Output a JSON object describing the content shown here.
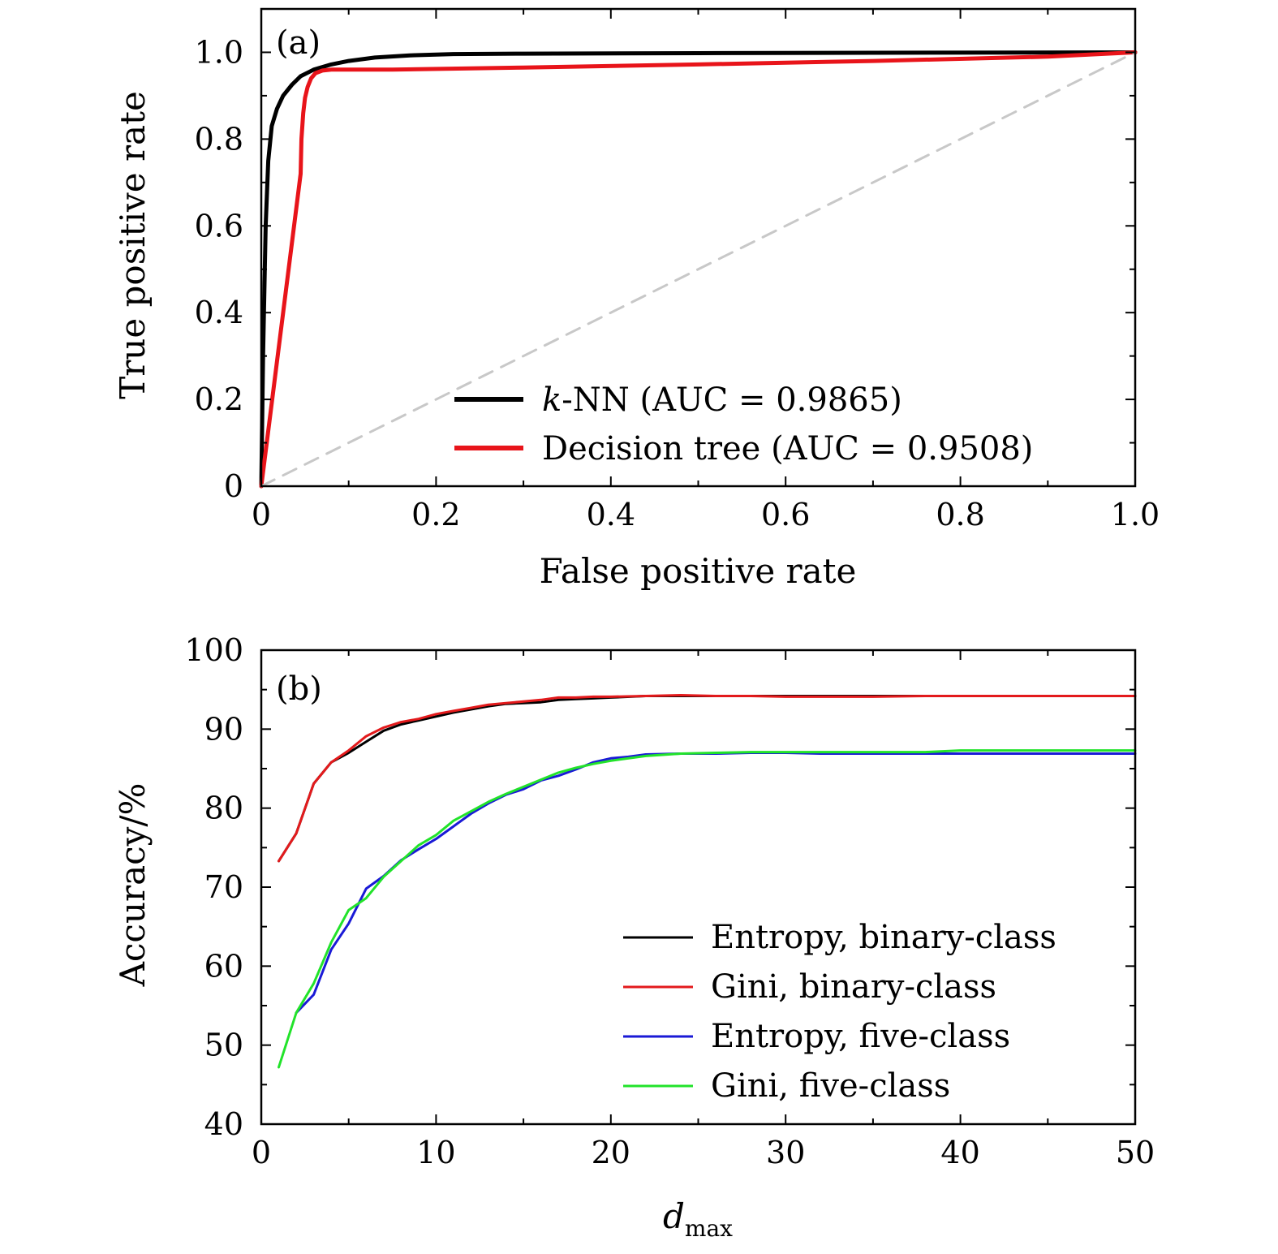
{
  "chart_data": [
    {
      "panel": "(a)",
      "type": "line",
      "xlabel": "False positive rate",
      "ylabel": "True positive rate",
      "xlim": [
        0,
        1
      ],
      "ylim": [
        0,
        1.1
      ],
      "xticks": [
        0,
        0.2,
        0.4,
        0.6,
        0.8,
        1.0
      ],
      "xtick_labels": [
        "0",
        "0.2",
        "0.4",
        "0.6",
        "0.8",
        "1.0"
      ],
      "yticks": [
        0,
        0.2,
        0.4,
        0.6,
        0.8,
        1.0
      ],
      "ytick_labels": [
        "0",
        "0.2",
        "0.4",
        "0.6",
        "0.8",
        "1.0"
      ],
      "legend_position": "bottom-right",
      "series": [
        {
          "name": "k-NN (AUC = 0.9865)",
          "name_italic": "k",
          "name_rest": "-NN (AUC = 0.9865)",
          "color": "#000000",
          "x": [
            0,
            0.002,
            0.005,
            0.008,
            0.012,
            0.018,
            0.025,
            0.035,
            0.045,
            0.06,
            0.08,
            0.1,
            0.13,
            0.17,
            0.22,
            0.3,
            0.5,
            0.7,
            1.0
          ],
          "y": [
            0,
            0.3,
            0.6,
            0.75,
            0.83,
            0.87,
            0.9,
            0.925,
            0.945,
            0.96,
            0.972,
            0.98,
            0.988,
            0.993,
            0.996,
            0.997,
            0.998,
            0.999,
            1.0
          ]
        },
        {
          "name": "Decision tree (AUC = 0.9508)",
          "color": "#e8141a",
          "x": [
            0,
            0.045,
            0.046,
            0.048,
            0.05,
            0.053,
            0.057,
            0.062,
            0.07,
            0.08,
            0.1,
            0.15,
            0.3,
            0.5,
            0.7,
            0.9,
            1.0
          ],
          "y": [
            0,
            0.72,
            0.8,
            0.86,
            0.895,
            0.92,
            0.94,
            0.952,
            0.958,
            0.96,
            0.96,
            0.96,
            0.965,
            0.972,
            0.98,
            0.99,
            1.0
          ]
        },
        {
          "name": "chance",
          "color": "#c8c8c8",
          "dashed": true,
          "x": [
            0,
            1
          ],
          "y": [
            0,
            1
          ]
        }
      ]
    },
    {
      "panel": "(b)",
      "type": "line",
      "xlabel": "d",
      "xlabel_sub": "max",
      "ylabel": "Accuracy/%",
      "xlim": [
        0,
        50
      ],
      "ylim": [
        40,
        100
      ],
      "xticks": [
        0,
        10,
        20,
        30,
        40,
        50
      ],
      "xtick_labels": [
        "0",
        "10",
        "20",
        "30",
        "40",
        "50"
      ],
      "yticks": [
        40,
        50,
        60,
        70,
        80,
        90,
        100
      ],
      "ytick_labels": [
        "40",
        "50",
        "60",
        "70",
        "80",
        "90",
        "100"
      ],
      "legend_position": "bottom-right",
      "series": [
        {
          "name": "Entropy, binary-class",
          "color": "#000000",
          "x": [
            1,
            2,
            3,
            4,
            5,
            6,
            7,
            8,
            9,
            10,
            11,
            12,
            13,
            14,
            15,
            16,
            17,
            18,
            19,
            20,
            22,
            24,
            26,
            28,
            30,
            32,
            35,
            38,
            40,
            45,
            50
          ],
          "y": [
            73.3,
            76.8,
            83.1,
            85.8,
            87.0,
            88.4,
            89.8,
            90.6,
            91.1,
            91.6,
            92.1,
            92.5,
            92.9,
            93.2,
            93.3,
            93.4,
            93.7,
            93.8,
            93.9,
            94.0,
            94.2,
            94.2,
            94.2,
            94.2,
            94.2,
            94.2,
            94.2,
            94.2,
            94.2,
            94.2,
            94.2
          ]
        },
        {
          "name": "Gini, binary-class",
          "color": "#e31a1c",
          "x": [
            1,
            2,
            3,
            4,
            5,
            6,
            7,
            8,
            9,
            10,
            11,
            12,
            13,
            14,
            15,
            16,
            17,
            18,
            19,
            20,
            22,
            24,
            26,
            28,
            30,
            32,
            35,
            38,
            40,
            45,
            50
          ],
          "y": [
            73.3,
            76.8,
            83.1,
            85.8,
            87.3,
            89.1,
            90.2,
            90.9,
            91.3,
            91.9,
            92.3,
            92.7,
            93.1,
            93.3,
            93.5,
            93.7,
            94.0,
            94.0,
            94.1,
            94.1,
            94.2,
            94.3,
            94.2,
            94.2,
            94.1,
            94.1,
            94.1,
            94.2,
            94.2,
            94.2,
            94.2
          ]
        },
        {
          "name": "Entropy, five-class",
          "color": "#1a1ad6",
          "x": [
            2,
            3,
            4,
            5,
            6,
            7,
            8,
            9,
            10,
            11,
            12,
            13,
            14,
            15,
            16,
            17,
            18,
            19,
            20,
            21,
            22,
            24,
            26,
            28,
            30,
            32,
            35,
            38,
            40,
            45,
            50
          ],
          "y": [
            54.1,
            56.4,
            62.1,
            65.4,
            69.8,
            71.4,
            73.4,
            74.8,
            76.1,
            77.7,
            79.3,
            80.6,
            81.7,
            82.4,
            83.5,
            84.1,
            84.9,
            85.8,
            86.3,
            86.5,
            86.8,
            86.9,
            86.9,
            87.0,
            87.0,
            86.9,
            86.9,
            86.9,
            86.9,
            86.9,
            86.9
          ]
        },
        {
          "name": "Gini, five-class",
          "color": "#22e32a",
          "x": [
            1,
            2,
            3,
            4,
            5,
            6,
            7,
            8,
            9,
            10,
            11,
            12,
            13,
            14,
            15,
            16,
            17,
            18,
            19,
            20,
            22,
            24,
            26,
            28,
            30,
            32,
            35,
            38,
            40,
            45,
            50
          ],
          "y": [
            47.2,
            54.1,
            57.8,
            63.0,
            67.1,
            68.6,
            71.3,
            73.3,
            75.3,
            76.6,
            78.4,
            79.6,
            80.8,
            81.8,
            82.7,
            83.6,
            84.5,
            85.1,
            85.6,
            86.0,
            86.6,
            86.9,
            87.0,
            87.1,
            87.1,
            87.1,
            87.1,
            87.1,
            87.3,
            87.3,
            87.3
          ]
        }
      ]
    }
  ]
}
